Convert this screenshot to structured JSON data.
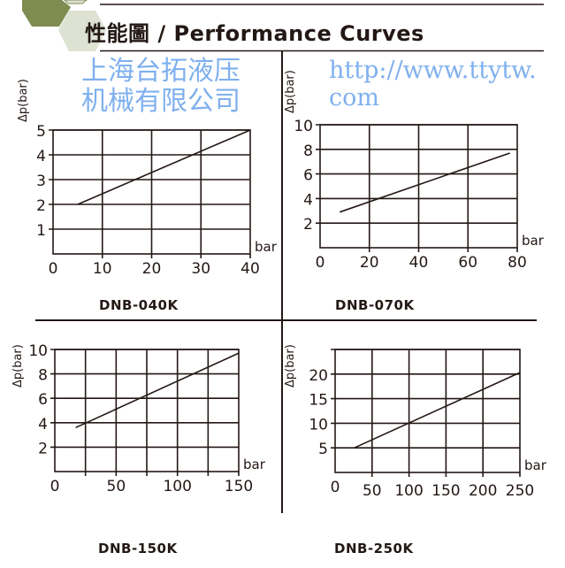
{
  "header": {
    "title": "性能圖 / Performance Curves",
    "accent_color": "#7e8c52",
    "light_hex_color": "#dde2d3"
  },
  "watermark": {
    "line1": "上海台拓液压机械有限公司",
    "line2": "http://www.ttytw.com",
    "color": "#5b9be8"
  },
  "chart_data": [
    {
      "type": "line",
      "title": "DNB-040K",
      "xlabel": "bar",
      "ylabel": "Δp(bar)",
      "xlim": [
        0,
        40
      ],
      "ylim": [
        0,
        5
      ],
      "xticks": [
        0,
        10,
        20,
        30,
        40
      ],
      "yticks": [
        1,
        2,
        3,
        4,
        5
      ],
      "grid": true,
      "series": [
        {
          "x": [
            5,
            40
          ],
          "y": [
            2,
            5
          ]
        }
      ]
    },
    {
      "type": "line",
      "title": "DNB-070K",
      "xlabel": "bar",
      "ylabel": "Δp(bar)",
      "xlim": [
        0,
        80
      ],
      "ylim": [
        0,
        10
      ],
      "xticks": [
        0,
        20,
        40,
        60,
        80
      ],
      "yticks": [
        2,
        4,
        6,
        8,
        10
      ],
      "grid": true,
      "series": [
        {
          "x": [
            8,
            77
          ],
          "y": [
            2.9,
            7.7
          ]
        }
      ]
    },
    {
      "type": "line",
      "title": "DNB-150K",
      "xlabel": "bar",
      "ylabel": "Δp(bar)",
      "xlim": [
        0,
        150
      ],
      "ylim": [
        0,
        10
      ],
      "xticks": [
        0,
        50,
        100,
        150
      ],
      "xgrid": [
        25,
        50,
        75,
        100,
        125
      ],
      "yticks": [
        2,
        4,
        6,
        8,
        10
      ],
      "grid": true,
      "series": [
        {
          "x": [
            17,
            150
          ],
          "y": [
            3.6,
            9.7
          ]
        }
      ]
    },
    {
      "type": "line",
      "title": "DNB-250K",
      "xlabel": "bar",
      "ylabel": "Δp(bar)",
      "xlim": [
        0,
        250
      ],
      "ylim": [
        0,
        25
      ],
      "xticks": [
        0,
        50,
        100,
        150,
        200,
        250
      ],
      "yticks": [
        5,
        10,
        15,
        20
      ],
      "ygrid": [
        5,
        10,
        15,
        20,
        25
      ],
      "grid": true,
      "series": [
        {
          "x": [
            26,
            250
          ],
          "y": [
            5,
            20.3
          ]
        }
      ]
    }
  ]
}
